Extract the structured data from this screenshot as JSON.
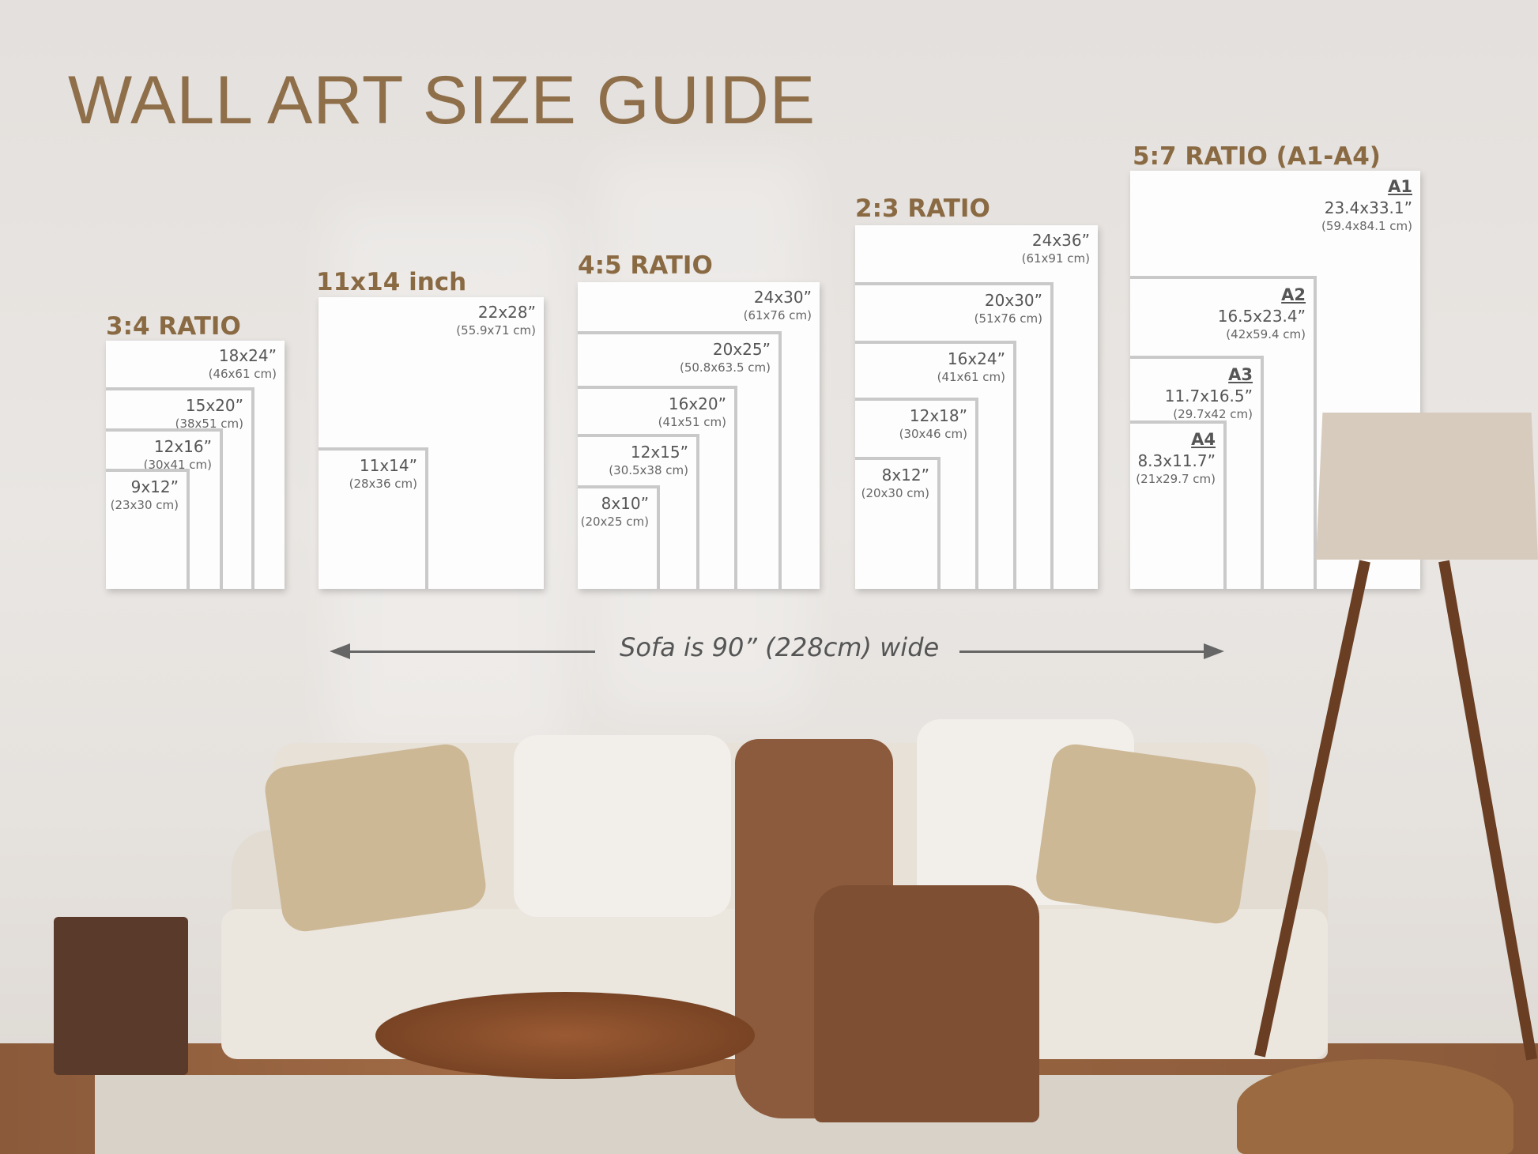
{
  "title": "WALL ART SIZE GUIDE",
  "groups": [
    {
      "heading": "3:4 RATIO",
      "sizes": [
        {
          "in": "18x24”",
          "cm": "(46x61 cm)"
        },
        {
          "in": "15x20”",
          "cm": "(38x51 cm)"
        },
        {
          "in": "12x16”",
          "cm": "(30x41 cm)"
        },
        {
          "in": "9x12”",
          "cm": "(23x30 cm)"
        }
      ]
    },
    {
      "heading": "11x14 inch",
      "sizes": [
        {
          "in": "22x28”",
          "cm": "(55.9x71 cm)"
        },
        {
          "in": "11x14”",
          "cm": "(28x36 cm)"
        }
      ]
    },
    {
      "heading": "4:5 RATIO",
      "sizes": [
        {
          "in": "24x30”",
          "cm": "(61x76 cm)"
        },
        {
          "in": "20x25”",
          "cm": "(50.8x63.5 cm)"
        },
        {
          "in": "16x20”",
          "cm": "(41x51 cm)"
        },
        {
          "in": "12x15”",
          "cm": "(30.5x38 cm)"
        },
        {
          "in": "8x10”",
          "cm": "(20x25 cm)"
        }
      ]
    },
    {
      "heading": "2:3 RATIO",
      "sizes": [
        {
          "in": "24x36”",
          "cm": "(61x91 cm)"
        },
        {
          "in": "20x30”",
          "cm": "(51x76 cm)"
        },
        {
          "in": "16x24”",
          "cm": "(41x61 cm)"
        },
        {
          "in": "12x18”",
          "cm": "(30x46 cm)"
        },
        {
          "in": "8x12”",
          "cm": "(20x30 cm)"
        }
      ]
    },
    {
      "heading": "5:7 RATIO (A1-A4)",
      "sizes": [
        {
          "name": "A1",
          "in": "23.4x33.1”",
          "cm": "(59.4x84.1 cm)"
        },
        {
          "name": "A2",
          "in": "16.5x23.4”",
          "cm": "(42x59.4 cm)"
        },
        {
          "name": "A3",
          "in": "11.7x16.5”",
          "cm": "(29.7x42 cm)"
        },
        {
          "name": "A4",
          "in": "8.3x11.7”",
          "cm": "(21x29.7 cm)"
        }
      ]
    }
  ],
  "sofa_note": "Sofa is 90” (228cm) wide",
  "colors": {
    "heading": "#8a6a43",
    "title": "#8e6f4a",
    "wall": "#e6e2de",
    "frame_border": "#c9c9c9"
  }
}
